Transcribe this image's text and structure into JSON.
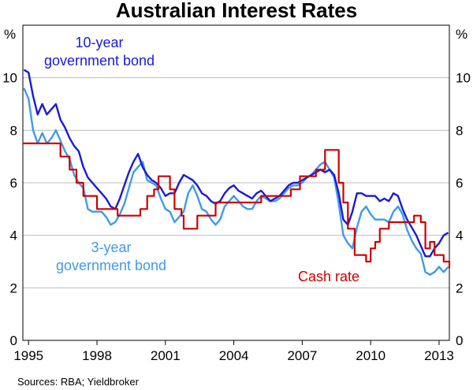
{
  "chart_data": {
    "type": "line",
    "title": "Australian Interest Rates",
    "ylabel_left": "%",
    "ylabel_right": "%",
    "source": "Sources: RBA; Yieldbroker",
    "xlim": [
      1994.75,
      2013.45
    ],
    "ylim": [
      0,
      12
    ],
    "y_ticks": [
      0,
      2,
      4,
      6,
      8,
      10
    ],
    "x_ticks": [
      {
        "value": 1995,
        "label": "1995"
      },
      {
        "value": 1998,
        "label": "1998"
      },
      {
        "value": 2001,
        "label": "2001"
      },
      {
        "value": 2004,
        "label": "2004"
      },
      {
        "value": 2007,
        "label": "2007"
      },
      {
        "value": 2010,
        "label": "2010"
      },
      {
        "value": 2013,
        "label": "2013"
      }
    ],
    "grid": true,
    "annotations": {
      "ten_year_line1": "10-year",
      "ten_year_line2": "government bond",
      "three_year_line1": "3-year",
      "three_year_line2": "government bond",
      "cash": "Cash rate"
    },
    "colors": {
      "ten_year": "#1a1ad6",
      "three_year": "#3d9be9",
      "cash": "#cc0000",
      "grid": "#bdbdbd"
    },
    "series": [
      {
        "key": "three_year",
        "type": "line",
        "x": [
          1994.8,
          1995.0,
          1995.2,
          1995.4,
          1995.6,
          1995.8,
          1996.0,
          1996.2,
          1996.4,
          1996.6,
          1996.8,
          1997.0,
          1997.2,
          1997.4,
          1997.6,
          1997.8,
          1998.0,
          1998.2,
          1998.4,
          1998.6,
          1998.8,
          1999.0,
          1999.2,
          1999.4,
          1999.6,
          1999.8,
          2000.0,
          2000.2,
          2000.4,
          2000.6,
          2000.8,
          2001.0,
          2001.2,
          2001.4,
          2001.6,
          2001.8,
          2002.0,
          2002.2,
          2002.4,
          2002.6,
          2002.8,
          2003.0,
          2003.2,
          2003.4,
          2003.6,
          2003.8,
          2004.0,
          2004.2,
          2004.4,
          2004.6,
          2004.8,
          2005.0,
          2005.2,
          2005.4,
          2005.6,
          2005.8,
          2006.0,
          2006.2,
          2006.4,
          2006.6,
          2006.8,
          2007.0,
          2007.2,
          2007.4,
          2007.6,
          2007.8,
          2008.0,
          2008.2,
          2008.4,
          2008.6,
          2008.8,
          2009.0,
          2009.2,
          2009.4,
          2009.6,
          2009.8,
          2010.0,
          2010.2,
          2010.4,
          2010.6,
          2010.8,
          2011.0,
          2011.2,
          2011.4,
          2011.6,
          2011.8,
          2012.0,
          2012.2,
          2012.4,
          2012.6,
          2012.8,
          2013.0,
          2013.2,
          2013.4
        ],
        "values": [
          9.6,
          9.2,
          8.0,
          7.5,
          7.9,
          7.5,
          7.7,
          8.0,
          7.6,
          7.2,
          6.9,
          6.3,
          6.0,
          5.8,
          5.0,
          4.9,
          4.9,
          4.9,
          4.7,
          4.4,
          4.5,
          4.8,
          5.2,
          5.8,
          6.4,
          6.6,
          6.8,
          6.1,
          6.0,
          5.9,
          5.4,
          5.0,
          4.9,
          4.5,
          4.7,
          4.9,
          5.6,
          5.9,
          5.5,
          5.0,
          4.9,
          4.6,
          4.4,
          4.6,
          5.1,
          5.3,
          5.5,
          5.3,
          5.1,
          5.0,
          5.0,
          5.3,
          5.5,
          5.4,
          5.3,
          5.3,
          5.4,
          5.6,
          5.8,
          5.9,
          5.9,
          6.0,
          6.2,
          6.3,
          6.5,
          6.7,
          6.8,
          6.5,
          6.2,
          5.2,
          4.0,
          3.7,
          3.5,
          4.3,
          4.9,
          5.1,
          4.8,
          4.6,
          4.6,
          4.6,
          4.5,
          4.9,
          5.1,
          4.8,
          4.2,
          3.8,
          3.5,
          3.3,
          2.6,
          2.5,
          2.6,
          2.8,
          2.6,
          2.8
        ]
      },
      {
        "key": "ten_year",
        "type": "line",
        "x": [
          1994.8,
          1995.0,
          1995.2,
          1995.4,
          1995.6,
          1995.8,
          1996.0,
          1996.2,
          1996.4,
          1996.6,
          1996.8,
          1997.0,
          1997.2,
          1997.4,
          1997.6,
          1997.8,
          1998.0,
          1998.2,
          1998.4,
          1998.6,
          1998.8,
          1999.0,
          1999.2,
          1999.4,
          1999.6,
          1999.8,
          2000.0,
          2000.2,
          2000.4,
          2000.6,
          2000.8,
          2001.0,
          2001.2,
          2001.4,
          2001.6,
          2001.8,
          2002.0,
          2002.2,
          2002.4,
          2002.6,
          2002.8,
          2003.0,
          2003.2,
          2003.4,
          2003.6,
          2003.8,
          2004.0,
          2004.2,
          2004.4,
          2004.6,
          2004.8,
          2005.0,
          2005.2,
          2005.4,
          2005.6,
          2005.8,
          2006.0,
          2006.2,
          2006.4,
          2006.6,
          2006.8,
          2007.0,
          2007.2,
          2007.4,
          2007.6,
          2007.8,
          2008.0,
          2008.2,
          2008.4,
          2008.6,
          2008.8,
          2009.0,
          2009.2,
          2009.4,
          2009.6,
          2009.8,
          2010.0,
          2010.2,
          2010.4,
          2010.6,
          2010.8,
          2011.0,
          2011.2,
          2011.4,
          2011.6,
          2011.8,
          2012.0,
          2012.2,
          2012.4,
          2012.6,
          2012.8,
          2013.0,
          2013.2,
          2013.4
        ],
        "values": [
          10.3,
          10.2,
          9.3,
          8.6,
          9.0,
          8.6,
          8.8,
          9.0,
          8.4,
          8.1,
          7.7,
          7.4,
          7.2,
          6.6,
          6.2,
          6.0,
          5.8,
          5.6,
          5.4,
          5.1,
          5.0,
          5.4,
          5.9,
          6.4,
          6.8,
          7.1,
          6.6,
          6.3,
          6.1,
          6.0,
          5.8,
          5.5,
          5.6,
          5.6,
          6.0,
          6.3,
          6.2,
          6.1,
          5.9,
          5.6,
          5.5,
          5.3,
          5.2,
          5.3,
          5.6,
          5.8,
          5.9,
          5.7,
          5.6,
          5.5,
          5.4,
          5.6,
          5.7,
          5.5,
          5.3,
          5.4,
          5.5,
          5.7,
          5.9,
          6.0,
          6.0,
          6.1,
          6.2,
          6.3,
          6.4,
          6.5,
          6.4,
          6.5,
          6.3,
          5.6,
          4.6,
          4.4,
          4.9,
          5.6,
          5.6,
          5.5,
          5.5,
          5.5,
          5.3,
          5.4,
          5.3,
          5.6,
          5.5,
          5.0,
          4.6,
          4.3,
          4.0,
          3.6,
          3.2,
          3.2,
          3.5,
          3.7,
          4.0,
          4.1
        ]
      },
      {
        "key": "cash",
        "type": "step",
        "x": [
          1994.75,
          1995.7,
          1996.4,
          1996.8,
          1997.1,
          1997.4,
          1998.0,
          1998.9,
          1999.9,
          2000.2,
          2000.5,
          2000.7,
          2001.2,
          2001.4,
          2001.7,
          2001.8,
          2002.4,
          2003.0,
          2003.2,
          2003.5,
          2005.2,
          2006.5,
          2006.9,
          2007.6,
          2008.0,
          2008.6,
          2008.8,
          2009.0,
          2009.3,
          2009.8,
          2010.0,
          2010.2,
          2010.4,
          2010.8,
          2011.9,
          2012.2,
          2012.4,
          2012.6,
          2012.8,
          2013.2,
          2013.45
        ],
        "values": [
          7.5,
          7.5,
          7.0,
          6.5,
          6.0,
          5.5,
          5.0,
          4.75,
          5.0,
          5.5,
          5.75,
          6.25,
          5.75,
          5.0,
          4.75,
          4.25,
          4.75,
          4.75,
          5.25,
          5.25,
          5.5,
          5.75,
          6.25,
          6.5,
          7.25,
          6.0,
          5.25,
          4.25,
          3.25,
          3.0,
          3.5,
          3.75,
          4.25,
          4.5,
          4.75,
          4.5,
          3.5,
          3.75,
          3.25,
          3.0,
          2.75
        ]
      }
    ]
  }
}
